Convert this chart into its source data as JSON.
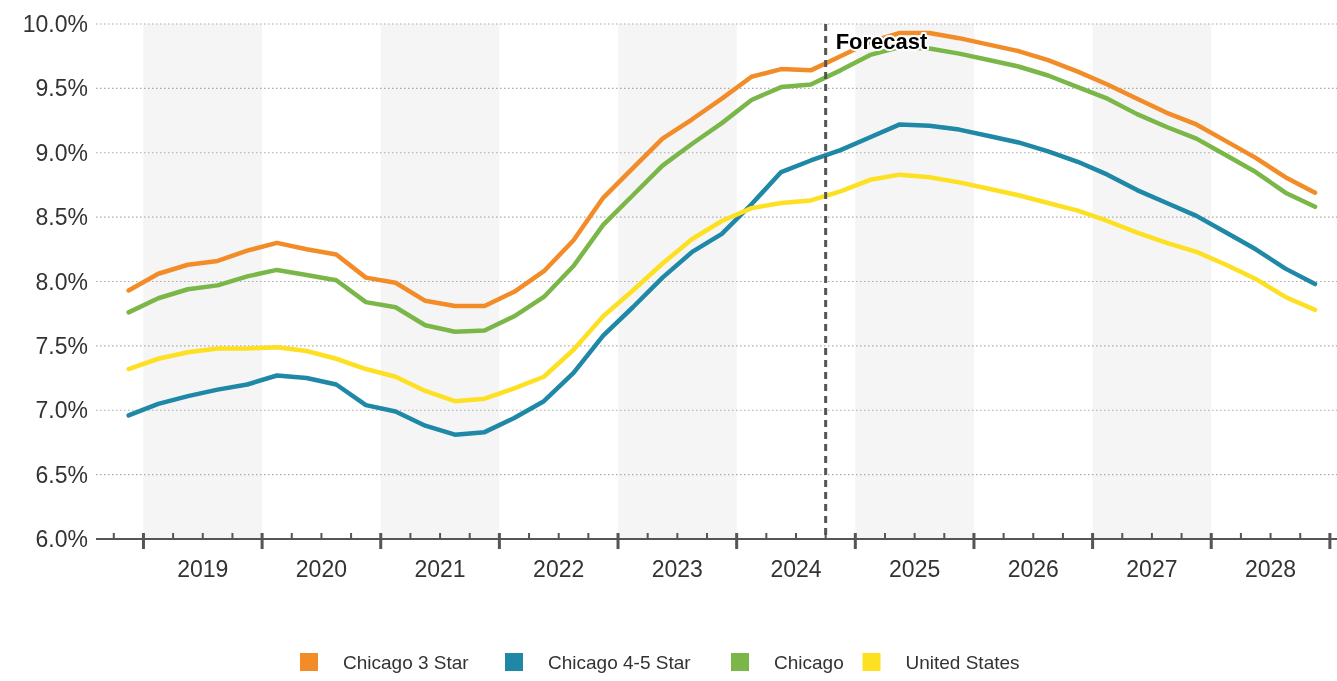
{
  "chart_data": {
    "type": "line",
    "x": [
      2018.875,
      2019.125,
      2019.375,
      2019.625,
      2019.875,
      2020.125,
      2020.375,
      2020.625,
      2020.875,
      2021.125,
      2021.375,
      2021.625,
      2021.875,
      2022.125,
      2022.375,
      2022.625,
      2022.875,
      2023.125,
      2023.375,
      2023.625,
      2023.875,
      2024.125,
      2024.375,
      2024.625,
      2024.875,
      2025.125,
      2025.375,
      2025.625,
      2025.875,
      2026.125,
      2026.375,
      2026.625,
      2026.875,
      2027.125,
      2027.375,
      2027.625,
      2027.875,
      2028.125,
      2028.375,
      2028.625,
      2028.875
    ],
    "series": [
      {
        "name": "Chicago 3 Star",
        "color": "#f28c28",
        "values": [
          7.93,
          8.06,
          8.13,
          8.16,
          8.24,
          8.3,
          8.25,
          8.21,
          8.03,
          7.99,
          7.85,
          7.81,
          7.81,
          7.92,
          8.08,
          8.32,
          8.65,
          8.88,
          9.11,
          9.26,
          9.42,
          9.59,
          9.65,
          9.64,
          9.75,
          9.86,
          9.93,
          9.93,
          9.89,
          9.84,
          9.79,
          9.72,
          9.63,
          9.53,
          9.42,
          9.31,
          9.22,
          9.09,
          8.96,
          8.81,
          8.69
        ]
      },
      {
        "name": "Chicago 4-5 Star",
        "color": "#1f88a6",
        "values": [
          6.96,
          7.05,
          7.11,
          7.16,
          7.2,
          7.27,
          7.25,
          7.2,
          7.04,
          6.99,
          6.88,
          6.81,
          6.83,
          6.94,
          7.07,
          7.29,
          7.58,
          7.8,
          8.03,
          8.23,
          8.37,
          8.6,
          8.85,
          8.94,
          9.02,
          9.12,
          9.22,
          9.21,
          9.18,
          9.13,
          9.08,
          9.01,
          8.93,
          8.83,
          8.71,
          8.61,
          8.51,
          8.38,
          8.25,
          8.1,
          7.98
        ]
      },
      {
        "name": "Chicago",
        "color": "#7ab648",
        "values": [
          7.76,
          7.87,
          7.94,
          7.97,
          8.04,
          8.09,
          8.05,
          8.01,
          7.84,
          7.8,
          7.66,
          7.61,
          7.62,
          7.73,
          7.88,
          8.12,
          8.44,
          8.67,
          8.9,
          9.07,
          9.23,
          9.41,
          9.51,
          9.53,
          9.64,
          9.76,
          9.82,
          9.81,
          9.77,
          9.72,
          9.67,
          9.6,
          9.51,
          9.42,
          9.3,
          9.2,
          9.11,
          8.98,
          8.85,
          8.69,
          8.58
        ]
      },
      {
        "name": "United States",
        "color": "#fde021",
        "values": [
          7.32,
          7.4,
          7.45,
          7.48,
          7.48,
          7.49,
          7.46,
          7.4,
          7.32,
          7.26,
          7.15,
          7.07,
          7.09,
          7.17,
          7.26,
          7.47,
          7.73,
          7.93,
          8.14,
          8.33,
          8.47,
          8.57,
          8.61,
          8.63,
          8.7,
          8.79,
          8.83,
          8.81,
          8.77,
          8.72,
          8.67,
          8.61,
          8.55,
          8.47,
          8.38,
          8.3,
          8.23,
          8.13,
          8.02,
          7.88,
          7.78
        ]
      }
    ],
    "xlim": [
      2018.6,
      2029.06
    ],
    "xticks": [
      {
        "value": 2018.75,
        "label": null
      },
      {
        "value": 2019,
        "label": null
      },
      {
        "value": 2019.25,
        "label": null
      },
      {
        "value": 2019.5,
        "label": "2019"
      },
      {
        "value": 2019.75,
        "label": null
      },
      {
        "value": 2020,
        "label": null
      },
      {
        "value": 2020.25,
        "label": null
      },
      {
        "value": 2020.5,
        "label": "2020"
      },
      {
        "value": 2020.75,
        "label": null
      },
      {
        "value": 2021,
        "label": null
      },
      {
        "value": 2021.25,
        "label": null
      },
      {
        "value": 2021.5,
        "label": "2021"
      },
      {
        "value": 2021.75,
        "label": null
      },
      {
        "value": 2022,
        "label": null
      },
      {
        "value": 2022.25,
        "label": null
      },
      {
        "value": 2022.5,
        "label": "2022"
      },
      {
        "value": 2022.75,
        "label": null
      },
      {
        "value": 2023,
        "label": null
      },
      {
        "value": 2023.25,
        "label": null
      },
      {
        "value": 2023.5,
        "label": "2023"
      },
      {
        "value": 2023.75,
        "label": null
      },
      {
        "value": 2024,
        "label": null
      },
      {
        "value": 2024.25,
        "label": null
      },
      {
        "value": 2024.5,
        "label": "2024"
      },
      {
        "value": 2024.75,
        "label": null
      },
      {
        "value": 2025,
        "label": null
      },
      {
        "value": 2025.25,
        "label": null
      },
      {
        "value": 2025.5,
        "label": "2025"
      },
      {
        "value": 2025.75,
        "label": null
      },
      {
        "value": 2026,
        "label": null
      },
      {
        "value": 2026.25,
        "label": null
      },
      {
        "value": 2026.5,
        "label": "2026"
      },
      {
        "value": 2026.75,
        "label": null
      },
      {
        "value": 2027,
        "label": null
      },
      {
        "value": 2027.25,
        "label": null
      },
      {
        "value": 2027.5,
        "label": "2027"
      },
      {
        "value": 2027.75,
        "label": null
      },
      {
        "value": 2028,
        "label": null
      },
      {
        "value": 2028.25,
        "label": null
      },
      {
        "value": 2028.5,
        "label": "2028"
      },
      {
        "value": 2028.75,
        "label": null
      },
      {
        "value": 2029,
        "label": null
      }
    ],
    "ylim": [
      6,
      10
    ],
    "yticks": [
      {
        "value": 6,
        "label": "6.0%"
      },
      {
        "value": 6.5,
        "label": "6.5%"
      },
      {
        "value": 7,
        "label": "7.0%"
      },
      {
        "value": 7.5,
        "label": "7.5%"
      },
      {
        "value": 8,
        "label": "8.0%"
      },
      {
        "value": 8.5,
        "label": "8.5%"
      },
      {
        "value": 9,
        "label": "9.0%"
      },
      {
        "value": 9.5,
        "label": "9.5%"
      },
      {
        "value": 10,
        "label": "10.0%"
      }
    ],
    "grid": "y",
    "legend": "bottom",
    "marker": "none",
    "line_style": "solid",
    "bands": [
      {
        "axis": "x",
        "from": 2019,
        "to": 2020,
        "color": "#f5f5f5"
      },
      {
        "axis": "x",
        "from": 2021,
        "to": 2022,
        "color": "#f5f5f5"
      },
      {
        "axis": "x",
        "from": 2023,
        "to": 2024,
        "color": "#f5f5f5"
      },
      {
        "axis": "x",
        "from": 2025,
        "to": 2026,
        "color": "#f5f5f5"
      },
      {
        "axis": "x",
        "from": 2027,
        "to": 2028,
        "color": "#f5f5f5"
      }
    ],
    "ref_lines": [
      {
        "axis": "x",
        "value": 2024.75,
        "label": "Forecast",
        "color": "#555555",
        "line_style": "dashed"
      }
    ]
  }
}
